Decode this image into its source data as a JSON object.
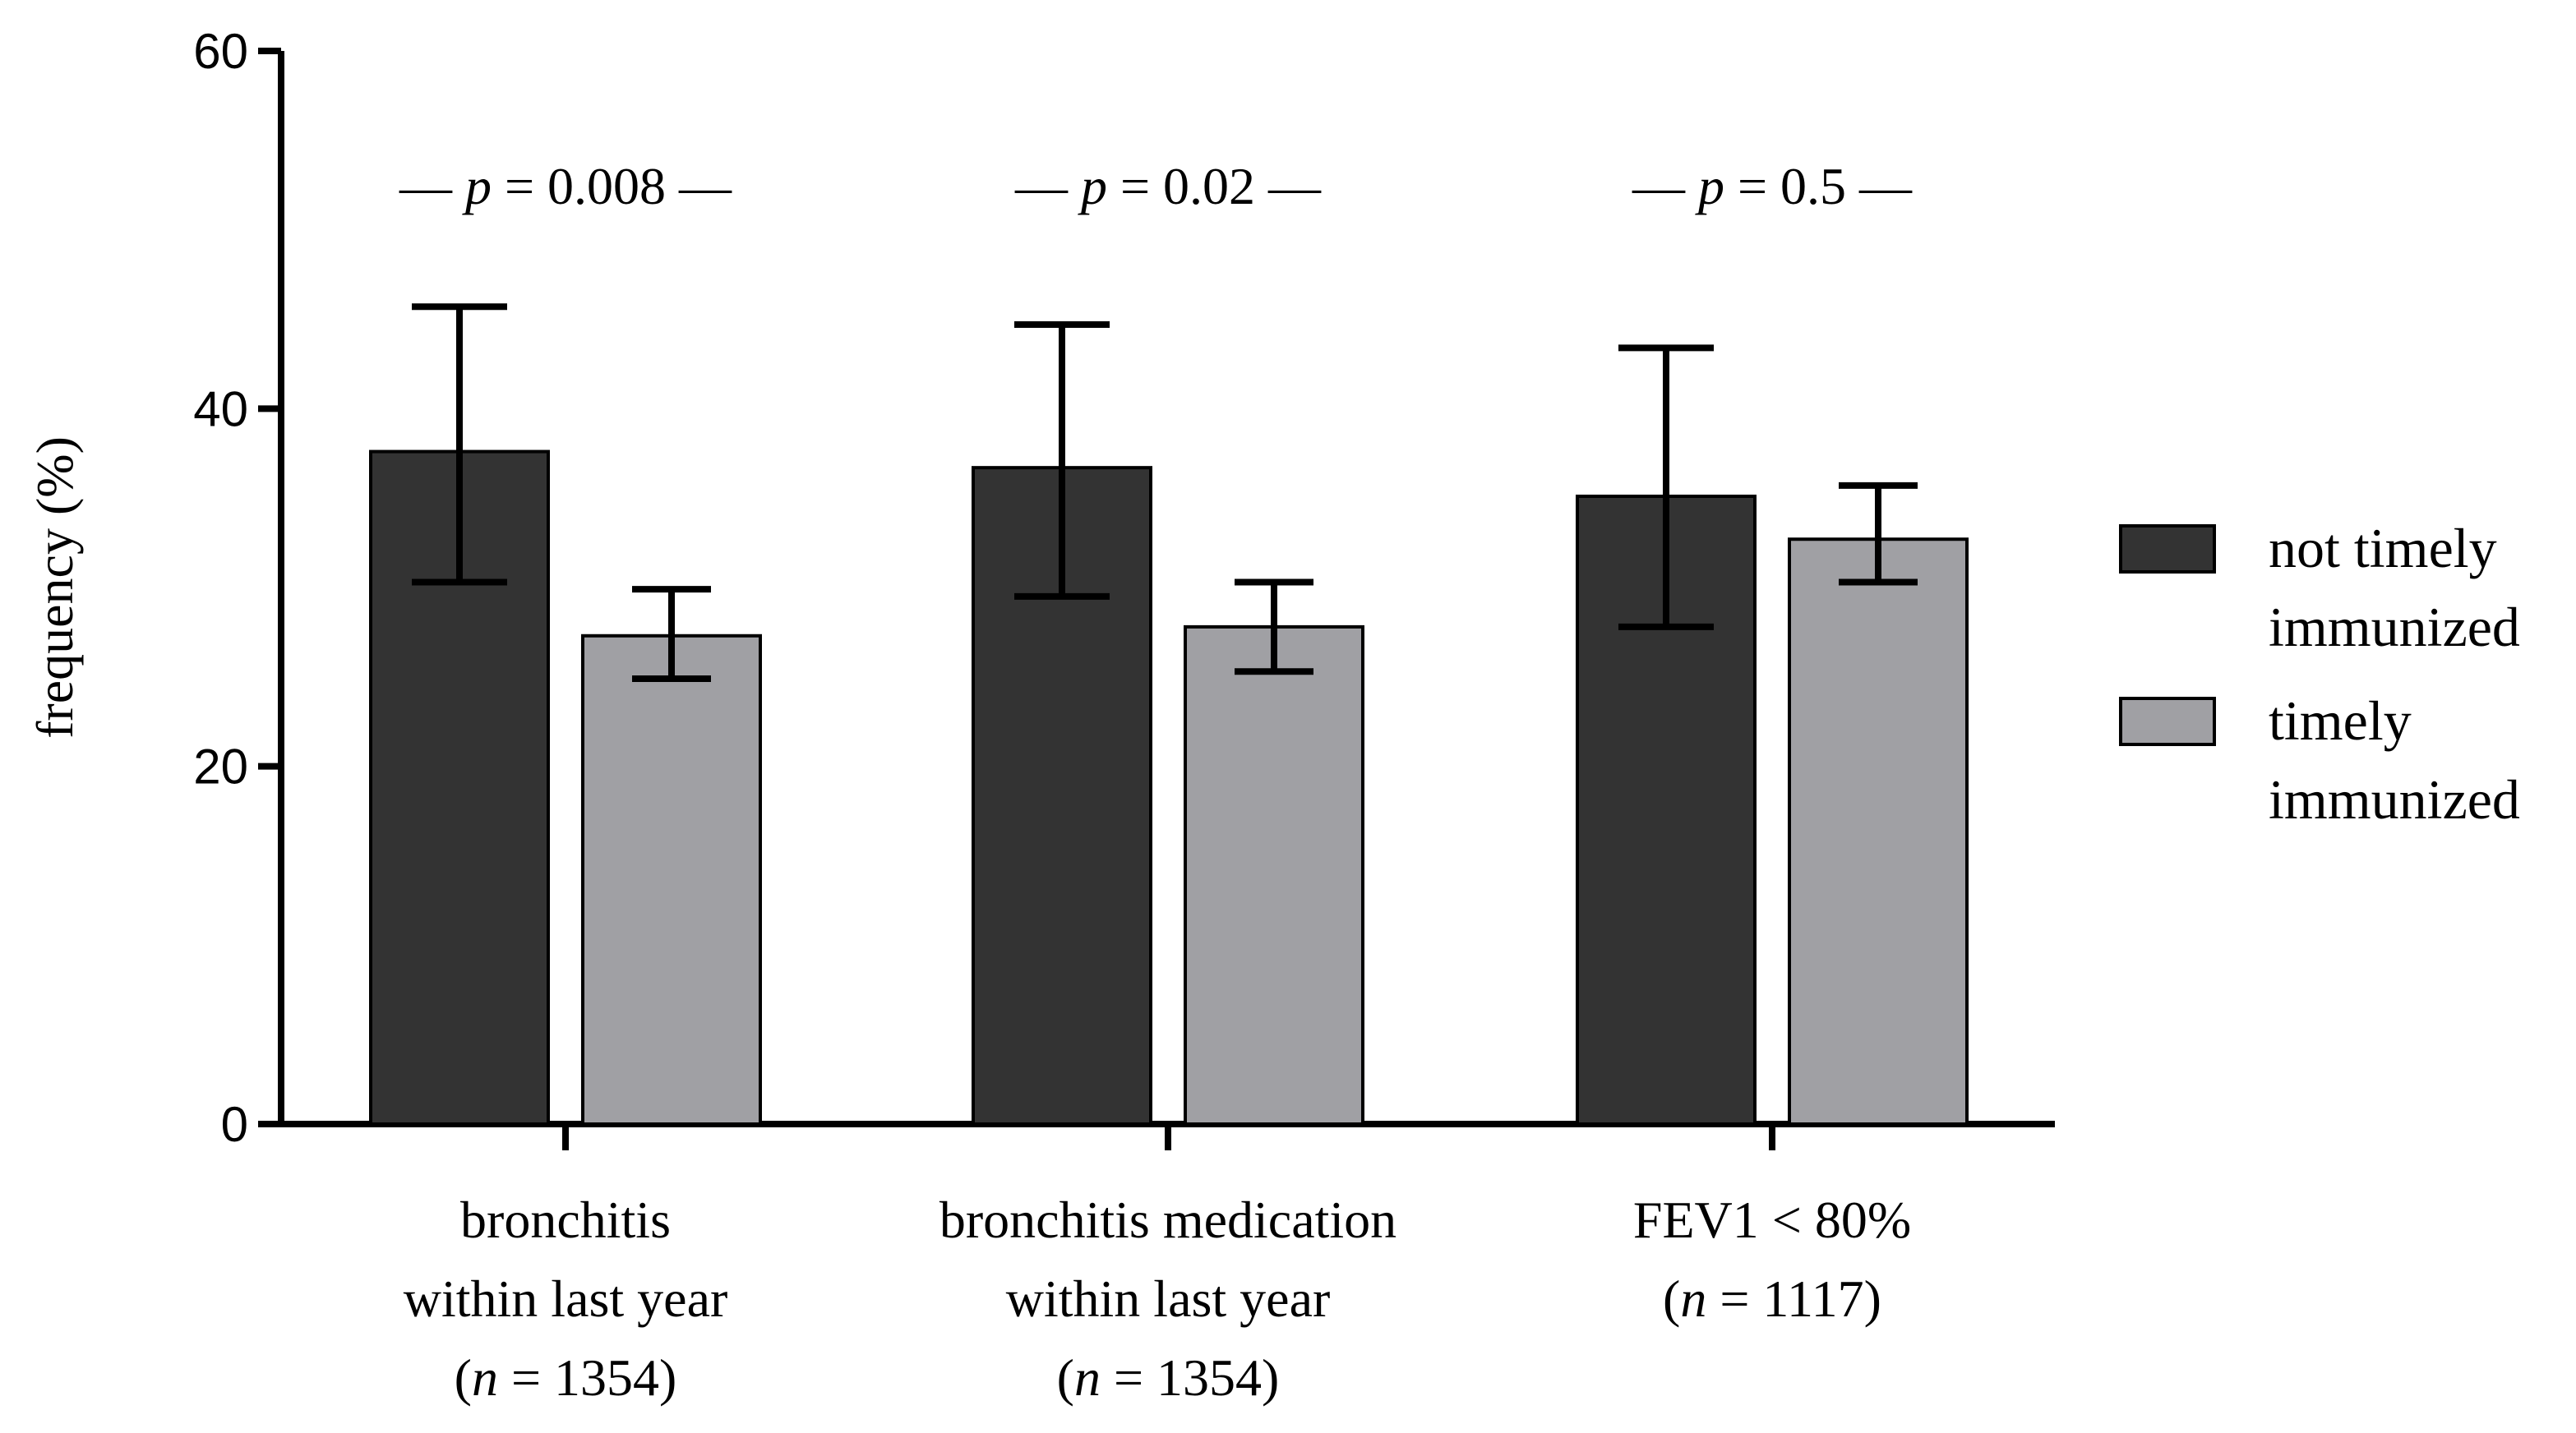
{
  "chart_data": {
    "type": "bar",
    "title": "",
    "xlabel": "",
    "ylabel": "frequency (%)",
    "ylim": [
      0,
      60
    ],
    "yticks": [
      0,
      20,
      40,
      60
    ],
    "grid": false,
    "legend_position": "right",
    "categories": [
      {
        "lines": [
          "bronchitis",
          "within last year"
        ],
        "n_prefix": "(",
        "n_var": "n",
        "n_text": " = 1354)"
      },
      {
        "lines": [
          "bronchitis medication",
          "within last year"
        ],
        "n_prefix": "(",
        "n_var": "n",
        "n_text": " = 1354)"
      },
      {
        "lines": [
          "FEV1 < 80%"
        ],
        "n_prefix": "(",
        "n_var": "n",
        "n_text": " = 1117)"
      }
    ],
    "series": [
      {
        "name": "not timely immunized",
        "legend_lines": [
          "not timely",
          "immunized"
        ],
        "color": "#333333",
        "values": [
          37.6,
          36.7,
          35.1
        ],
        "err_low": [
          30.3,
          29.5,
          27.8
        ],
        "err_high": [
          45.7,
          44.7,
          43.4
        ]
      },
      {
        "name": "timely immunized",
        "legend_lines": [
          "timely",
          "immunized"
        ],
        "color": "#a0a0a4",
        "values": [
          27.3,
          27.8,
          32.7
        ],
        "err_low": [
          24.9,
          25.3,
          30.3
        ],
        "err_high": [
          29.9,
          30.3,
          35.7
        ]
      }
    ],
    "annotations": [
      {
        "dash": "—",
        "p_var": "p",
        "text": " = 0.008"
      },
      {
        "dash": "—",
        "p_var": "p",
        "text": " = 0.02"
      },
      {
        "dash": "—",
        "p_var": "p",
        "text": " = 0.5"
      }
    ]
  }
}
